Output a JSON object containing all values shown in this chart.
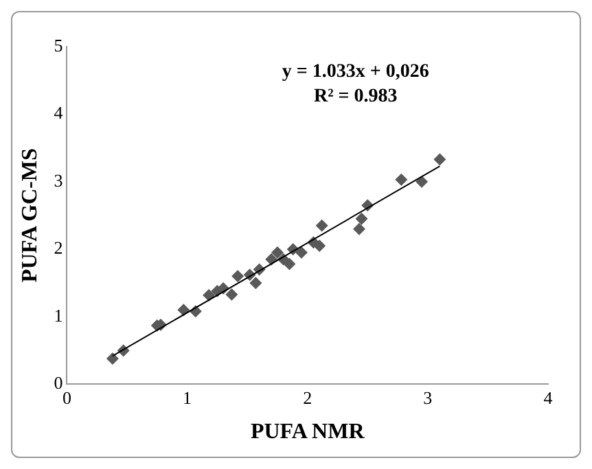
{
  "chart_data": {
    "type": "scatter",
    "xlabel": "PUFA NMR",
    "ylabel": "PUFA GC-MS",
    "annotations": [
      "y = 1.033x + 0,026",
      "R² = 0.983"
    ],
    "series": [
      {
        "color": "#595959",
        "marker": "diamond",
        "x": [
          0.38,
          0.47,
          0.75,
          0.78,
          0.97,
          1.07,
          1.18,
          1.25,
          1.3,
          1.37,
          1.42,
          1.52,
          1.57,
          1.6,
          1.7,
          1.75,
          1.8,
          1.85,
          1.88,
          1.95,
          2.05,
          2.1,
          2.12,
          2.43,
          2.45,
          2.5,
          2.78,
          2.95,
          3.1
        ],
        "values": [
          0.38,
          0.5,
          0.87,
          0.88,
          1.1,
          1.08,
          1.32,
          1.38,
          1.42,
          1.33,
          1.6,
          1.62,
          1.5,
          1.7,
          1.85,
          1.95,
          1.85,
          1.78,
          2.0,
          1.95,
          2.1,
          2.05,
          2.35,
          2.3,
          2.45,
          2.65,
          3.03,
          3.0,
          3.33
        ]
      },
      {
        "type": "line",
        "marker": "none",
        "color": "#000000",
        "x": [
          0.38,
          3.1
        ],
        "values": [
          0.42,
          3.23
        ]
      }
    ],
    "xlim": [
      0,
      4
    ],
    "xticks": [
      0,
      1,
      2,
      3,
      4
    ],
    "ylim": [
      0,
      5
    ],
    "yticks": [
      0,
      1,
      2,
      3,
      4,
      5
    ],
    "grid": false,
    "legend": false
  }
}
